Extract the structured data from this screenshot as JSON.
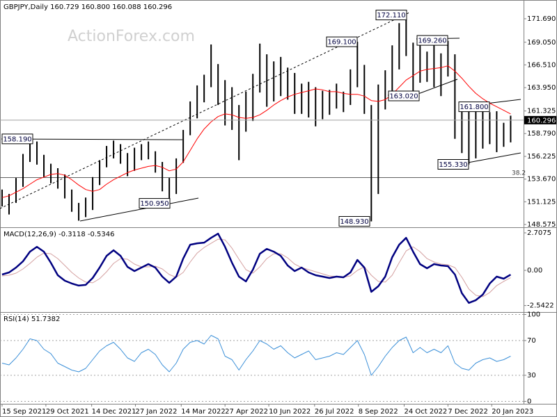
{
  "chart_data": [
    {
      "type": "ohlc",
      "title": "GBPJPY,Daily  160.729 160.800 160.088 160.296",
      "watermark": "ActionForex.com",
      "x": [
        "2021-09-15",
        "2021-09-22",
        "2021-09-29",
        "2021-10-06",
        "2021-10-13",
        "2021-10-20",
        "2021-10-27",
        "2021-11-03",
        "2021-11-10",
        "2021-11-17",
        "2021-11-24",
        "2021-12-01",
        "2021-12-08",
        "2021-12-15",
        "2021-12-22",
        "2021-12-29",
        "2022-01-05",
        "2022-01-12",
        "2022-01-19",
        "2022-01-26",
        "2022-02-02",
        "2022-02-09",
        "2022-02-16",
        "2022-02-23",
        "2022-03-02",
        "2022-03-09",
        "2022-03-16",
        "2022-03-23",
        "2022-03-30",
        "2022-04-06",
        "2022-04-13",
        "2022-04-20",
        "2022-04-27",
        "2022-05-04",
        "2022-05-11",
        "2022-05-18",
        "2022-05-25",
        "2022-06-01",
        "2022-06-08",
        "2022-06-15",
        "2022-06-22",
        "2022-06-29",
        "2022-07-06",
        "2022-07-13",
        "2022-07-20",
        "2022-07-27",
        "2022-08-03",
        "2022-08-10",
        "2022-08-17",
        "2022-08-24",
        "2022-08-31",
        "2022-09-07",
        "2022-09-14",
        "2022-09-21",
        "2022-09-28",
        "2022-10-05",
        "2022-10-12",
        "2022-10-19",
        "2022-10-26",
        "2022-11-02",
        "2022-11-09",
        "2022-11-16",
        "2022-11-23",
        "2022-11-30",
        "2022-12-07",
        "2022-12-14",
        "2022-12-21",
        "2022-12-28",
        "2023-01-04",
        "2023-01-11",
        "2023-01-18",
        "2023-01-25",
        "2023-02-01",
        "2023-02-08"
      ],
      "high": [
        152.5,
        152.0,
        153.8,
        156.5,
        158.19,
        157.9,
        156.4,
        155.4,
        154.9,
        154.2,
        152.5,
        151.0,
        151.6,
        153.9,
        155.8,
        157.4,
        158.0,
        157.6,
        156.6,
        157.2,
        157.6,
        157.9,
        156.8,
        155.6,
        153.8,
        156.0,
        159.2,
        162.4,
        164.2,
        165.4,
        168.8,
        166.6,
        164.8,
        164.0,
        162.0,
        163.5,
        165.5,
        168.9,
        167.7,
        166.9,
        167.4,
        166.2,
        165.6,
        164.4,
        164.6,
        164.0,
        163.6,
        163.7,
        164.4,
        163.5,
        166.0,
        169.1,
        166.5,
        162.0,
        164.3,
        165.9,
        168.7,
        171.2,
        172.11,
        169.0,
        169.26,
        168.0,
        168.8,
        167.8,
        169.2,
        167.7,
        162.0,
        161.6,
        161.5,
        161.8,
        161.2,
        161.3,
        160.0,
        160.8
      ],
      "low": [
        150.6,
        149.7,
        151.0,
        152.8,
        155.6,
        155.3,
        153.9,
        153.2,
        152.6,
        151.5,
        150.0,
        149.0,
        149.4,
        150.2,
        153.0,
        155.0,
        156.0,
        155.4,
        154.0,
        154.6,
        155.8,
        155.9,
        154.4,
        152.3,
        150.95,
        152.0,
        155.5,
        158.6,
        160.5,
        162.3,
        164.0,
        162.0,
        159.7,
        159.2,
        155.8,
        159.0,
        160.2,
        163.4,
        161.8,
        162.4,
        163.0,
        162.6,
        161.0,
        161.0,
        160.6,
        159.6,
        160.4,
        160.9,
        161.6,
        161.2,
        162.0,
        164.0,
        161.0,
        148.93,
        152.0,
        161.5,
        163.1,
        166.0,
        167.5,
        163.6,
        164.5,
        164.6,
        164.0,
        163.0,
        165.2,
        158.2,
        156.6,
        155.33,
        156.0,
        157.1,
        157.6,
        156.7,
        157.3,
        157.8
      ],
      "bar_color": "#000000",
      "ma_values": [
        151.6,
        151.8,
        152.2,
        152.6,
        153.1,
        153.6,
        153.9,
        154.2,
        154.3,
        154.1,
        153.6,
        153.0,
        152.5,
        152.3,
        152.5,
        153.1,
        153.6,
        154.0,
        154.4,
        154.7,
        154.9,
        155.1,
        155.2,
        155.0,
        154.6,
        154.8,
        155.6,
        156.9,
        158.2,
        159.3,
        160.1,
        160.7,
        161.0,
        160.9,
        160.6,
        160.5,
        160.6,
        160.9,
        161.4,
        162.0,
        162.5,
        162.9,
        163.2,
        163.4,
        163.6,
        163.8,
        163.7,
        163.5,
        163.5,
        163.3,
        163.2,
        163.2,
        163.0,
        162.5,
        162.4,
        162.6,
        163.2,
        164.0,
        164.8,
        165.3,
        165.8,
        166.0,
        166.1,
        166.2,
        166.4,
        165.8,
        165.0,
        164.1,
        163.3,
        162.7,
        162.2,
        161.8,
        161.4,
        161.0
      ],
      "ma_color": "#ff0000",
      "last_price": 160.296,
      "annotations": [
        {
          "value": 172.11,
          "label": "172.110"
        },
        {
          "value": 169.1,
          "label": "169.100"
        },
        {
          "value": 169.26,
          "label": "169.260"
        },
        {
          "value": 163.02,
          "label": "163.020"
        },
        {
          "value": 161.8,
          "label": "161.800"
        },
        {
          "value": 155.33,
          "label": "155.330"
        },
        {
          "value": 158.19,
          "label": "158.190"
        },
        {
          "value": 150.95,
          "label": "150.950"
        },
        {
          "value": 148.93,
          "label": "148.930"
        }
      ],
      "fib_label": "38.2",
      "xlim": [
        "2021-09-15",
        "2023-02-21"
      ],
      "xticks": [
        {
          "value": "2021-09-15",
          "label": "15 Sep 2021"
        },
        {
          "value": "2021-10-29",
          "label": "29 Oct 2021"
        },
        {
          "value": "2021-12-14",
          "label": "14 Dec 2021"
        },
        {
          "value": "2022-01-27",
          "label": "27 Jan 2022"
        },
        {
          "value": "2022-03-14",
          "label": "14 Mar 2022"
        },
        {
          "value": "2022-04-27",
          "label": "27 Apr 2022"
        },
        {
          "value": "2022-06-10",
          "label": "10 Jun 2022"
        },
        {
          "value": "2022-07-26",
          "label": "26 Jul 2022"
        },
        {
          "value": "2022-09-08",
          "label": "8 Sep 2022"
        },
        {
          "value": "2022-10-24",
          "label": "24 Oct 2022"
        },
        {
          "value": "2022-12-07",
          "label": "7 Dec 2022"
        },
        {
          "value": "2023-01-20",
          "label": "20 Jan 2023"
        }
      ],
      "ylim": [
        148.34,
        173.64
      ],
      "yticks": [
        {
          "value": 171.69,
          "label": "171.690"
        },
        {
          "value": 169.05,
          "label": "169.050"
        },
        {
          "value": 166.51,
          "label": "166.510"
        },
        {
          "value": 163.95,
          "label": "163.950"
        },
        161.325,
        {
          "value": 158.79,
          "label": "158.790"
        },
        156.225,
        {
          "value": 153.67,
          "label": "153.670"
        },
        151.125,
        148.575
      ],
      "grid": false
    },
    {
      "type": "macd",
      "title": "MACD(12,26,9) -0.3118 -0.5346",
      "series": [
        {
          "color": "#000080",
          "values": [
            -0.3,
            -0.15,
            0.2,
            0.65,
            1.35,
            1.7,
            1.35,
            0.55,
            -0.35,
            -0.75,
            -0.95,
            -1.1,
            -1.05,
            -0.55,
            0.2,
            1.05,
            1.45,
            1.05,
            0.25,
            -0.05,
            0.2,
            0.45,
            0.2,
            -0.45,
            -0.9,
            -0.45,
            0.85,
            1.85,
            1.95,
            2.0,
            2.35,
            2.65,
            1.7,
            0.55,
            -0.45,
            -0.8,
            0.05,
            1.2,
            1.55,
            1.35,
            1.05,
            0.35,
            -0.05,
            0.2,
            -0.15,
            -0.35,
            -0.45,
            -0.55,
            -0.45,
            -0.5,
            -0.15,
            0.75,
            0.2,
            -1.55,
            -1.15,
            -0.45,
            0.95,
            1.85,
            2.35,
            1.35,
            0.45,
            0.15,
            0.45,
            0.35,
            0.3,
            -0.3,
            -1.65,
            -2.35,
            -2.15,
            -1.75,
            -0.95,
            -0.45,
            -0.6,
            -0.31
          ]
        },
        {
          "color": "#d4a0a0",
          "values": [
            -0.4,
            -0.35,
            -0.2,
            0.1,
            0.5,
            0.95,
            1.25,
            1.2,
            0.85,
            0.35,
            -0.15,
            -0.55,
            -0.85,
            -0.9,
            -0.6,
            -0.1,
            0.5,
            0.85,
            0.8,
            0.45,
            0.25,
            0.25,
            0.3,
            0.1,
            -0.3,
            -0.5,
            -0.15,
            0.6,
            1.25,
            1.65,
            1.95,
            2.25,
            2.2,
            1.6,
            0.8,
            0.05,
            -0.2,
            0.25,
            0.85,
            1.2,
            1.2,
            0.9,
            0.45,
            0.2,
            0.05,
            -0.1,
            -0.25,
            -0.4,
            -0.45,
            -0.5,
            -0.4,
            0.0,
            0.25,
            -0.35,
            -0.8,
            -0.85,
            -0.35,
            0.55,
            1.4,
            1.7,
            1.35,
            0.85,
            0.6,
            0.45,
            0.4,
            0.2,
            -0.5,
            -1.35,
            -1.8,
            -1.9,
            -1.6,
            -1.1,
            -0.8,
            -0.53
          ]
        }
      ],
      "ylim": [
        -2.96,
        3.06
      ],
      "yticks": [
        2.7075,
        {
          "value": 0,
          "label": "0.00"
        },
        -2.5422
      ],
      "grid": false
    },
    {
      "type": "line",
      "title": "RSI(14) 51.7382",
      "color": "#3a8fd8",
      "values": [
        44,
        42,
        50,
        60,
        72,
        70,
        60,
        55,
        44,
        40,
        36,
        34,
        38,
        48,
        58,
        64,
        68,
        60,
        50,
        46,
        56,
        60,
        54,
        42,
        34,
        44,
        60,
        68,
        70,
        66,
        76,
        72,
        52,
        48,
        36,
        48,
        58,
        70,
        66,
        60,
        64,
        56,
        50,
        54,
        58,
        48,
        50,
        52,
        56,
        54,
        62,
        70,
        54,
        30,
        40,
        52,
        62,
        70,
        74,
        56,
        62,
        56,
        60,
        56,
        64,
        44,
        38,
        36,
        44,
        48,
        50,
        46,
        48,
        52
      ],
      "ylim": [
        -2,
        102
      ],
      "yticks": [
        100,
        70,
        30,
        0
      ],
      "grid": true
    }
  ]
}
